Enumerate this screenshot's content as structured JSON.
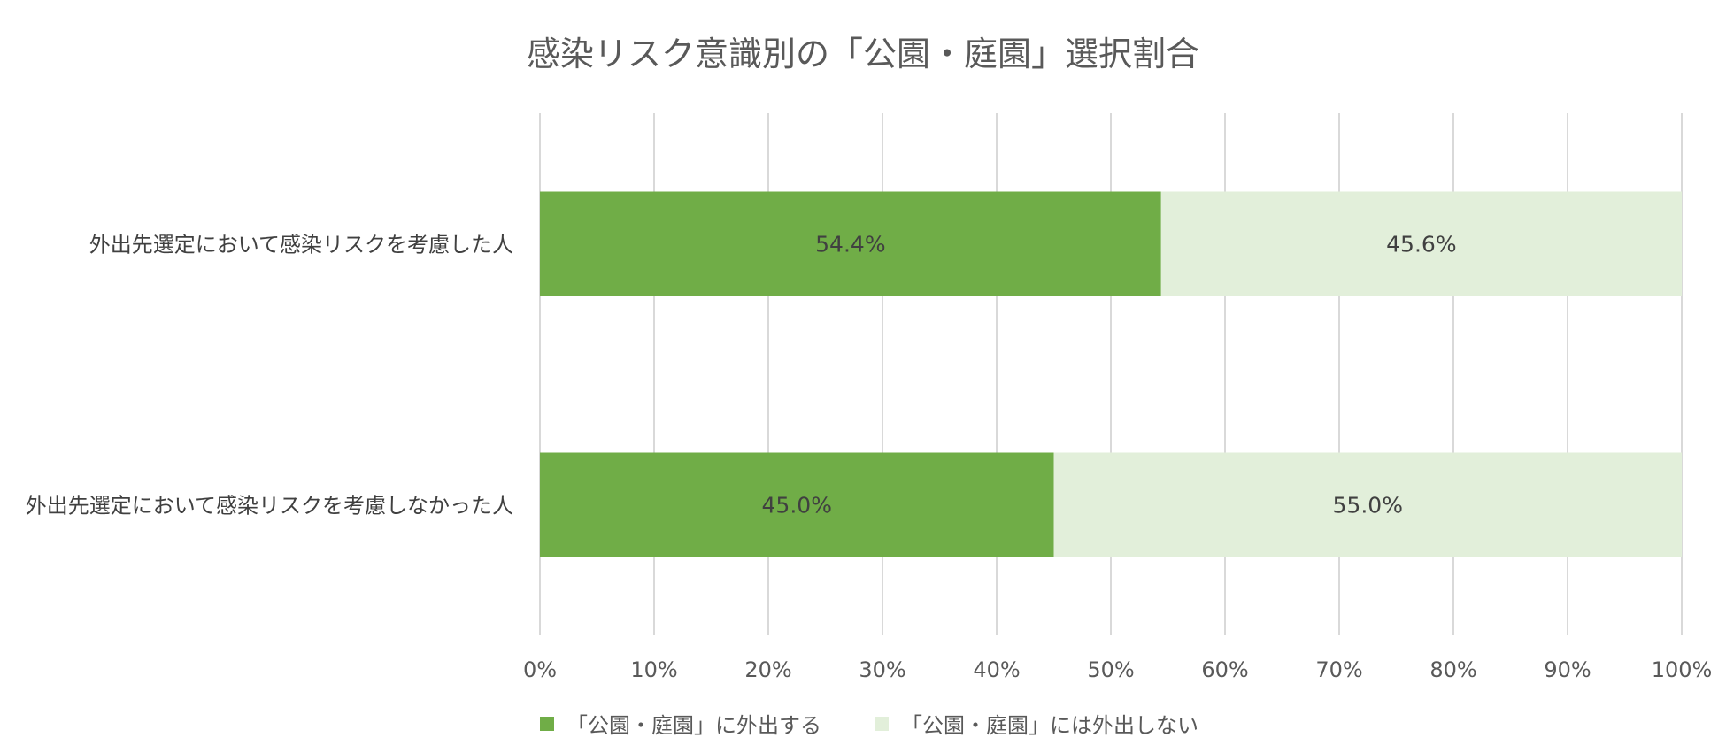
{
  "chart_data": {
    "type": "bar",
    "orientation": "horizontal",
    "stacked": true,
    "title": "感染リスク意識別の「公園・庭園」選択割合",
    "categories": [
      "外出先選定において感染リスクを考慮した人",
      "外出先選定において感染リスクを考慮しなかった人"
    ],
    "series": [
      {
        "name": "「公園・庭園」に外出する",
        "values": [
          54.4,
          45.0
        ],
        "labels": [
          "54.4%",
          "45.0%"
        ],
        "color": "#70ad47"
      },
      {
        "name": "「公園・庭園」には外出しない",
        "values": [
          45.6,
          55.0
        ],
        "labels": [
          "45.6%",
          "55.0%"
        ],
        "color": "#e2efda"
      }
    ],
    "xlim": [
      0,
      100
    ],
    "xticks": [
      "0%",
      "10%",
      "20%",
      "30%",
      "40%",
      "50%",
      "60%",
      "70%",
      "80%",
      "90%",
      "100%"
    ],
    "grid": true,
    "legend_position": "bottom",
    "gridline_color": "#d9d9d9"
  }
}
